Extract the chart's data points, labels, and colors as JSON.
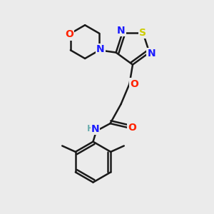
{
  "background_color": "#ebebeb",
  "bond_color": "#1a1a1a",
  "atom_colors": {
    "N": "#1a1aff",
    "O": "#ff2200",
    "S": "#cccc00",
    "C": "#1a1a1a",
    "H": "#6aadad"
  },
  "bond_width": 1.8
}
